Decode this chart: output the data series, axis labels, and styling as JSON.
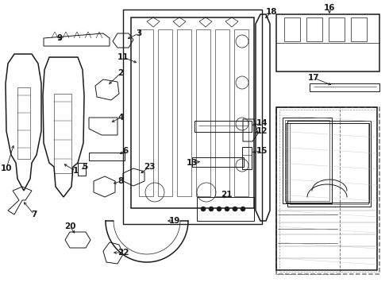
{
  "bg_color": "#ffffff",
  "line_color": "#1a1a1a",
  "lw": 0.7,
  "lw2": 1.1,
  "fig_width": 4.9,
  "fig_height": 3.6,
  "dpi": 100
}
